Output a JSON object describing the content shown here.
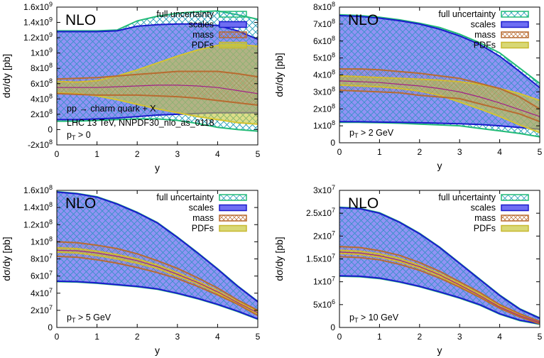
{
  "colors": {
    "full": "#22bb77",
    "scales_fill": "#6e6ef2",
    "scales_line": "#1a1acc",
    "mass": "#b86b30",
    "pdfs": "#c8c83a",
    "central": "#a0208a"
  },
  "chart_data": [
    {
      "type": "area",
      "title": "NLO",
      "xlabel": "y",
      "ylabel": "dσ/dy [pb]",
      "xlim": [
        0,
        5
      ],
      "ylim": [
        -200000000,
        1600000000
      ],
      "x": [
        0,
        0.5,
        1,
        1.5,
        2,
        2.5,
        3,
        3.5,
        4,
        4.5,
        5
      ],
      "y_unit": 100000000,
      "xticks": [
        "0",
        "1",
        "2",
        "3",
        "4",
        "5"
      ],
      "yticks": [
        {
          "value": -200000000,
          "mant": "-2x10",
          "exp": "8"
        },
        {
          "value": 0,
          "mant": "0",
          "exp": ""
        },
        {
          "value": 200000000,
          "mant": "2x10",
          "exp": "8"
        },
        {
          "value": 400000000,
          "mant": "4x10",
          "exp": "8"
        },
        {
          "value": 600000000,
          "mant": "6x10",
          "exp": "8"
        },
        {
          "value": 800000000,
          "mant": "8x10",
          "exp": "8"
        },
        {
          "value": 1000000000,
          "mant": "1x10",
          "exp": "9"
        },
        {
          "value": 1200000000,
          "mant": "1.2x10",
          "exp": "9"
        },
        {
          "value": 1400000000,
          "mant": "1.4x10",
          "exp": "9"
        },
        {
          "value": 1600000000,
          "mant": "1.6x10",
          "exp": "9"
        }
      ],
      "legend": [
        "full uncertainty",
        "scales",
        "mass",
        "PDFs"
      ],
      "legend_position": "top-right",
      "annotations": [
        "pp → charm quark + X",
        "LHC 13 TeV, NNPDF30_nlo_as_0118"
      ],
      "cut": {
        "base": "p",
        "sub": "T",
        "rest": " > 0"
      },
      "series": {
        "full_hi": [
          12.9,
          12.9,
          12.9,
          13.0,
          14.2,
          14.8,
          15.2,
          15.4,
          15.5,
          15.0,
          14.4
        ],
        "full_lo": [
          1.1,
          1.1,
          1.2,
          1.3,
          1.4,
          1.4,
          1.2,
          0.8,
          0.3,
          0.0,
          -0.2
        ],
        "scales_hi": [
          12.8,
          12.8,
          12.8,
          12.9,
          13.5,
          13.7,
          13.8,
          13.8,
          13.6,
          12.9,
          11.8
        ],
        "scales_lo": [
          1.3,
          1.3,
          1.4,
          1.5,
          1.7,
          1.9,
          2.0,
          2.1,
          2.2,
          2.2,
          2.2
        ],
        "mass_hi": [
          6.6,
          6.7,
          6.8,
          7.0,
          7.2,
          7.4,
          7.6,
          7.6,
          7.6,
          7.3,
          6.9
        ],
        "mass_lo": [
          4.7,
          4.6,
          4.5,
          4.5,
          4.5,
          4.4,
          4.3,
          4.1,
          3.8,
          3.5,
          3.2
        ],
        "pdfs_hi": [
          6.3,
          6.2,
          6.4,
          7.0,
          7.8,
          8.7,
          9.6,
          10.4,
          11.0,
          11.1,
          10.9
        ],
        "pdfs_lo": [
          4.8,
          4.7,
          4.4,
          3.9,
          3.3,
          2.7,
          2.2,
          1.7,
          1.3,
          0.9,
          0.7
        ],
        "central": [
          5.5,
          5.5,
          5.5,
          5.6,
          5.7,
          5.8,
          5.8,
          5.7,
          5.5,
          5.1,
          4.7
        ]
      }
    },
    {
      "type": "area",
      "title": "NLO",
      "xlabel": "y",
      "ylabel": "dσ/dy [pb]",
      "xlim": [
        0,
        5
      ],
      "ylim": [
        0,
        800000000
      ],
      "x": [
        0,
        0.5,
        1,
        1.5,
        2,
        2.5,
        3,
        3.5,
        4,
        4.5,
        5
      ],
      "y_unit": 100000000,
      "xticks": [
        "0",
        "1",
        "2",
        "3",
        "4",
        "5"
      ],
      "yticks": [
        {
          "value": 0,
          "mant": "0",
          "exp": ""
        },
        {
          "value": 100000000,
          "mant": "1x10",
          "exp": "8"
        },
        {
          "value": 200000000,
          "mant": "2x10",
          "exp": "8"
        },
        {
          "value": 300000000,
          "mant": "3x10",
          "exp": "8"
        },
        {
          "value": 400000000,
          "mant": "4x10",
          "exp": "8"
        },
        {
          "value": 500000000,
          "mant": "5x10",
          "exp": "8"
        },
        {
          "value": 600000000,
          "mant": "6x10",
          "exp": "8"
        },
        {
          "value": 700000000,
          "mant": "7x10",
          "exp": "8"
        },
        {
          "value": 800000000,
          "mant": "8x10",
          "exp": "8"
        }
      ],
      "legend": [
        "full uncertainty",
        "scales",
        "mass",
        "PDFs"
      ],
      "legend_position": "top-right",
      "annotations": [],
      "cut": {
        "base": "p",
        "sub": "T",
        "rest": " > 2 GeV"
      },
      "series": {
        "full_hi": [
          7.55,
          7.5,
          7.4,
          7.25,
          7.05,
          6.8,
          6.4,
          5.9,
          5.3,
          4.4,
          3.5
        ],
        "full_lo": [
          1.2,
          1.2,
          1.18,
          1.15,
          1.1,
          1.05,
          1.0,
          0.85,
          0.7,
          0.55,
          0.35
        ],
        "scales_hi": [
          7.5,
          7.45,
          7.35,
          7.2,
          7.0,
          6.7,
          6.3,
          5.8,
          5.1,
          4.2,
          3.25
        ],
        "scales_lo": [
          1.25,
          1.24,
          1.22,
          1.2,
          1.18,
          1.15,
          1.12,
          1.08,
          1.0,
          0.9,
          0.8
        ],
        "mass_hi": [
          4.35,
          4.35,
          4.3,
          4.2,
          4.1,
          3.95,
          3.8,
          3.5,
          3.2,
          2.7,
          2.0
        ],
        "mass_lo": [
          3.1,
          3.05,
          3.0,
          2.95,
          2.8,
          2.7,
          2.6,
          2.3,
          2.0,
          1.7,
          1.25
        ],
        "pdfs_hi": [
          3.95,
          3.9,
          3.85,
          3.8,
          3.75,
          3.7,
          3.6,
          3.45,
          3.2,
          2.9,
          2.5
        ],
        "pdfs_lo": [
          3.4,
          3.35,
          3.3,
          3.2,
          3.05,
          2.8,
          2.4,
          2.0,
          1.55,
          1.05,
          0.6
        ],
        "central": [
          3.65,
          3.6,
          3.55,
          3.45,
          3.35,
          3.2,
          3.0,
          2.7,
          2.35,
          1.95,
          1.55
        ]
      }
    },
    {
      "type": "area",
      "title": "NLO",
      "xlabel": "y",
      "ylabel": "dσ/dy [pb]",
      "xlim": [
        0,
        5
      ],
      "ylim": [
        0,
        160000000
      ],
      "x": [
        0,
        0.5,
        1,
        1.5,
        2,
        2.5,
        3,
        3.5,
        4,
        4.5,
        5
      ],
      "y_unit": 10000000,
      "xticks": [
        "0",
        "1",
        "2",
        "3",
        "4",
        "5"
      ],
      "yticks": [
        {
          "value": 0,
          "mant": "0",
          "exp": ""
        },
        {
          "value": 20000000,
          "mant": "2x10",
          "exp": "7"
        },
        {
          "value": 40000000,
          "mant": "4x10",
          "exp": "7"
        },
        {
          "value": 60000000,
          "mant": "6x10",
          "exp": "7"
        },
        {
          "value": 80000000,
          "mant": "8x10",
          "exp": "7"
        },
        {
          "value": 100000000,
          "mant": "1x10",
          "exp": "8"
        },
        {
          "value": 120000000,
          "mant": "1.2x10",
          "exp": "8"
        },
        {
          "value": 140000000,
          "mant": "1.4x10",
          "exp": "8"
        },
        {
          "value": 160000000,
          "mant": "1.6x10",
          "exp": "8"
        }
      ],
      "legend": [
        "full uncertainty",
        "scales",
        "mass",
        "PDFs"
      ],
      "legend_position": "top-right",
      "annotations": [],
      "cut": {
        "base": "p",
        "sub": "T",
        "rest": " > 5 GeV"
      },
      "series": {
        "full_hi": [
          15.85,
          15.65,
          15.25,
          14.45,
          13.45,
          12.25,
          10.55,
          8.75,
          6.85,
          4.85,
          3.05
        ],
        "full_lo": [
          5.35,
          5.3,
          5.15,
          4.95,
          4.75,
          4.45,
          3.95,
          3.35,
          2.65,
          1.85,
          0.95
        ],
        "scales_hi": [
          15.8,
          15.6,
          15.2,
          14.4,
          13.4,
          12.2,
          10.5,
          8.7,
          6.8,
          4.8,
          3.0
        ],
        "scales_lo": [
          5.4,
          5.35,
          5.2,
          5.0,
          4.8,
          4.5,
          4.0,
          3.4,
          2.7,
          1.9,
          1.0
        ],
        "mass_hi": [
          10.0,
          9.9,
          9.6,
          9.2,
          8.6,
          7.8,
          6.9,
          5.8,
          4.6,
          3.2,
          2.0
        ],
        "mass_lo": [
          8.3,
          8.2,
          7.9,
          7.5,
          7.0,
          6.4,
          5.7,
          4.8,
          3.8,
          2.7,
          1.4
        ],
        "pdfs_hi": [
          9.3,
          9.2,
          8.9,
          8.5,
          8.0,
          7.3,
          6.4,
          5.4,
          4.3,
          3.0,
          1.9
        ],
        "pdfs_lo": [
          8.8,
          8.7,
          8.4,
          8.0,
          7.5,
          6.9,
          6.0,
          5.1,
          4.0,
          2.8,
          1.6
        ],
        "central": [
          9.0,
          8.95,
          8.7,
          8.3,
          7.8,
          7.1,
          6.2,
          5.25,
          4.15,
          2.9,
          1.7
        ]
      }
    },
    {
      "type": "area",
      "title": "NLO",
      "xlabel": "y",
      "ylabel": "dσ/dy [pb]",
      "xlim": [
        0,
        5
      ],
      "ylim": [
        0,
        30000000
      ],
      "x": [
        0,
        0.5,
        1,
        1.5,
        2,
        2.5,
        3,
        3.5,
        4,
        4.5,
        5
      ],
      "y_unit": 1000000,
      "xticks": [
        "0",
        "1",
        "2",
        "3",
        "4",
        "5"
      ],
      "yticks": [
        {
          "value": 0,
          "mant": "0",
          "exp": ""
        },
        {
          "value": 5000000,
          "mant": "5x10",
          "exp": "6"
        },
        {
          "value": 10000000,
          "mant": "1x10",
          "exp": "7"
        },
        {
          "value": 15000000,
          "mant": "1.5x10",
          "exp": "7"
        },
        {
          "value": 20000000,
          "mant": "2x10",
          "exp": "7"
        },
        {
          "value": 25000000,
          "mant": "2.5x10",
          "exp": "7"
        },
        {
          "value": 30000000,
          "mant": "3x10",
          "exp": "7"
        }
      ],
      "legend": [
        "full uncertainty",
        "scales",
        "mass",
        "PDFs"
      ],
      "legend_position": "top-right",
      "annotations": [],
      "cut": {
        "base": "p",
        "sub": "T",
        "rest": " > 10 GeV"
      },
      "series": {
        "full_hi": [
          26.3,
          26.1,
          25.1,
          23.1,
          20.6,
          17.6,
          14.1,
          10.6,
          7.1,
          4.1,
          2.1
        ],
        "full_lo": [
          11.2,
          11.1,
          10.7,
          9.9,
          8.9,
          7.7,
          6.4,
          4.9,
          2.9,
          1.5,
          0.7
        ],
        "scales_hi": [
          26.2,
          26.0,
          25.0,
          23.0,
          20.5,
          17.5,
          14.0,
          10.5,
          7.0,
          4.0,
          2.0
        ],
        "scales_lo": [
          11.3,
          11.2,
          10.8,
          10.0,
          9.0,
          7.8,
          6.5,
          5.0,
          3.0,
          1.6,
          0.8
        ],
        "mass_hi": [
          17.7,
          17.5,
          16.8,
          15.8,
          14.2,
          12.3,
          10.0,
          7.7,
          5.0,
          3.0,
          1.3
        ],
        "mass_lo": [
          15.5,
          15.3,
          14.8,
          13.8,
          12.5,
          10.8,
          8.8,
          6.6,
          4.2,
          2.3,
          0.8
        ],
        "pdfs_hi": [
          16.9,
          16.7,
          16.1,
          15.1,
          13.6,
          11.8,
          9.6,
          7.3,
          4.7,
          2.8,
          1.15
        ],
        "pdfs_lo": [
          16.2,
          16.0,
          15.4,
          14.4,
          13.0,
          11.2,
          9.1,
          6.8,
          4.4,
          2.5,
          0.95
        ],
        "central": [
          16.5,
          16.3,
          15.7,
          14.7,
          13.3,
          11.5,
          9.3,
          7.0,
          4.5,
          2.6,
          1.05
        ]
      }
    }
  ]
}
